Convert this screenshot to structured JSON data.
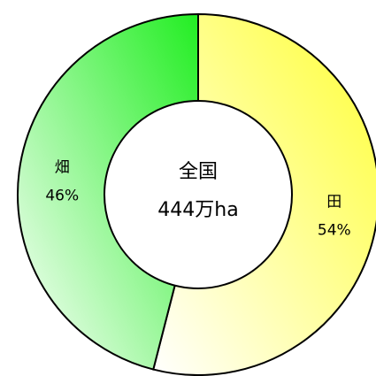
{
  "chart_data": {
    "type": "pie",
    "variant": "donut",
    "center_label": {
      "line1": "全国",
      "line2": "444万ha"
    },
    "slices": [
      {
        "name": "田",
        "value": 54,
        "label": "54%",
        "color_start": "#ffff33",
        "color_end": "#ffffff"
      },
      {
        "name": "畑",
        "value": 46,
        "label": "46%",
        "color_start": "#22ee22",
        "color_end": "#ffffff"
      }
    ],
    "start_angle_deg": 0,
    "direction": "clockwise",
    "legend": "none"
  }
}
